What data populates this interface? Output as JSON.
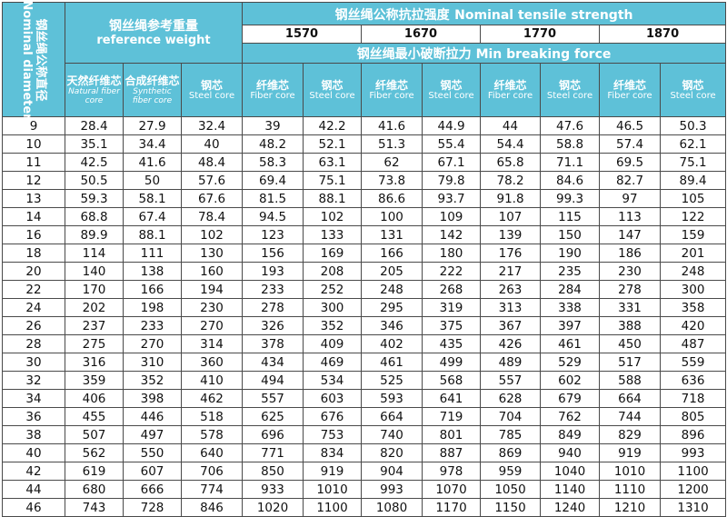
{
  "header": {
    "diameter_cn": "钢丝绳公称直径",
    "diameter_en": "Nominal diameter",
    "weight_cn": "钢丝绳参考重量",
    "weight_en": "reference weight",
    "strength_cn": "钢丝绳公称抗拉强度",
    "strength_en": "Nominal tensile strength",
    "grades": [
      "1570",
      "1670",
      "1770",
      "1870"
    ],
    "mbf_cn": "钢丝绳最小破断拉力",
    "mbf_en": "Min breaking force",
    "natural_cn": "天然纤维芯",
    "natural_en": "Natural fiber core",
    "synthetic_cn": "合成纤维芯",
    "synthetic_en": "Synthetic fiber core",
    "steel_cn": "钢芯",
    "steel_en": "Steel core",
    "fiber_cn": "纤维芯",
    "fiber_en": "Fiber core"
  },
  "rows": [
    [
      "9",
      "28.4",
      "27.9",
      "32.4",
      "39",
      "42.2",
      "41.6",
      "44.9",
      "44",
      "47.6",
      "46.5",
      "50.3"
    ],
    [
      "10",
      "35.1",
      "34.4",
      "40",
      "48.2",
      "52.1",
      "51.3",
      "55.4",
      "54.4",
      "58.8",
      "57.4",
      "62.1"
    ],
    [
      "11",
      "42.5",
      "41.6",
      "48.4",
      "58.3",
      "63.1",
      "62",
      "67.1",
      "65.8",
      "71.1",
      "69.5",
      "75.1"
    ],
    [
      "12",
      "50.5",
      "50",
      "57.6",
      "69.4",
      "75.1",
      "73.8",
      "79.8",
      "78.2",
      "84.6",
      "82.7",
      "89.4"
    ],
    [
      "13",
      "59.3",
      "58.1",
      "67.6",
      "81.5",
      "88.1",
      "86.6",
      "93.7",
      "91.8",
      "99.3",
      "97",
      "105"
    ],
    [
      "14",
      "68.8",
      "67.4",
      "78.4",
      "94.5",
      "102",
      "100",
      "109",
      "107",
      "115",
      "113",
      "122"
    ],
    [
      "16",
      "89.9",
      "88.1",
      "102",
      "123",
      "133",
      "131",
      "142",
      "139",
      "150",
      "147",
      "159"
    ],
    [
      "18",
      "114",
      "111",
      "130",
      "156",
      "169",
      "166",
      "180",
      "176",
      "190",
      "186",
      "201"
    ],
    [
      "20",
      "140",
      "138",
      "160",
      "193",
      "208",
      "205",
      "222",
      "217",
      "235",
      "230",
      "248"
    ],
    [
      "22",
      "170",
      "166",
      "194",
      "233",
      "252",
      "248",
      "268",
      "263",
      "284",
      "278",
      "300"
    ],
    [
      "24",
      "202",
      "198",
      "230",
      "278",
      "300",
      "295",
      "319",
      "313",
      "338",
      "331",
      "358"
    ],
    [
      "26",
      "237",
      "233",
      "270",
      "326",
      "352",
      "346",
      "375",
      "367",
      "397",
      "388",
      "420"
    ],
    [
      "28",
      "275",
      "270",
      "314",
      "378",
      "409",
      "402",
      "435",
      "426",
      "461",
      "450",
      "487"
    ],
    [
      "30",
      "316",
      "310",
      "360",
      "434",
      "469",
      "461",
      "499",
      "489",
      "529",
      "517",
      "559"
    ],
    [
      "32",
      "359",
      "352",
      "410",
      "494",
      "534",
      "525",
      "568",
      "557",
      "602",
      "588",
      "636"
    ],
    [
      "34",
      "406",
      "398",
      "462",
      "557",
      "603",
      "593",
      "641",
      "628",
      "679",
      "664",
      "718"
    ],
    [
      "36",
      "455",
      "446",
      "518",
      "625",
      "676",
      "664",
      "719",
      "704",
      "762",
      "744",
      "805"
    ],
    [
      "38",
      "507",
      "497",
      "578",
      "696",
      "753",
      "740",
      "801",
      "785",
      "849",
      "829",
      "896"
    ],
    [
      "40",
      "562",
      "550",
      "640",
      "771",
      "834",
      "820",
      "887",
      "869",
      "940",
      "919",
      "993"
    ],
    [
      "42",
      "619",
      "607",
      "706",
      "850",
      "919",
      "904",
      "978",
      "959",
      "1040",
      "1010",
      "1100"
    ],
    [
      "44",
      "680",
      "666",
      "774",
      "933",
      "1010",
      "993",
      "1070",
      "1050",
      "1140",
      "1110",
      "1200"
    ],
    [
      "46",
      "743",
      "728",
      "846",
      "1020",
      "1100",
      "1080",
      "1170",
      "1150",
      "1240",
      "1210",
      "1310"
    ]
  ]
}
